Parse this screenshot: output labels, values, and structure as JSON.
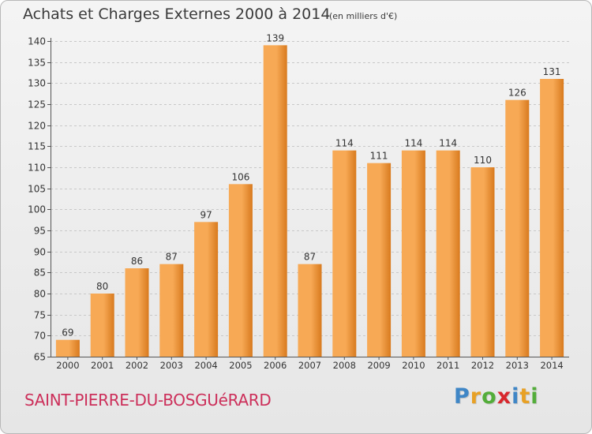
{
  "header": {
    "title": "Achats et Charges Externes 2000 à 2014",
    "unit": "(en milliers d'€)"
  },
  "footer": {
    "commune": "SAINT-PIERRE-DU-BOSGUéRARD",
    "logo": [
      {
        "char": "P",
        "color": "#3f86c6"
      },
      {
        "char": "r",
        "color": "#e8a125"
      },
      {
        "char": "o",
        "color": "#53ad3a"
      },
      {
        "char": "x",
        "color": "#d8272d"
      },
      {
        "char": "i",
        "color": "#3f86c6"
      },
      {
        "char": "t",
        "color": "#e8a125"
      },
      {
        "char": "i",
        "color": "#53ad3a"
      }
    ]
  },
  "colors": {
    "bar_light": "#f7a955",
    "bar_dark": "#d87a1e",
    "axis": "#555555",
    "grid": "#c8c8c8"
  },
  "chart_data": {
    "type": "bar",
    "title": "Achats et Charges Externes 2000 à 2014",
    "ylabel": "",
    "xlabel": "",
    "ylim": [
      65,
      140
    ],
    "yticks": [
      65,
      70,
      75,
      80,
      85,
      90,
      95,
      100,
      105,
      110,
      115,
      120,
      125,
      130,
      135,
      140
    ],
    "grid": true,
    "categories": [
      "2000",
      "2001",
      "2002",
      "2003",
      "2004",
      "2005",
      "2006",
      "2007",
      "2008",
      "2009",
      "2010",
      "2011",
      "2012",
      "2013",
      "2014"
    ],
    "values": [
      69,
      80,
      86,
      87,
      97,
      106,
      139,
      87,
      114,
      111,
      114,
      114,
      110,
      126,
      131
    ]
  }
}
